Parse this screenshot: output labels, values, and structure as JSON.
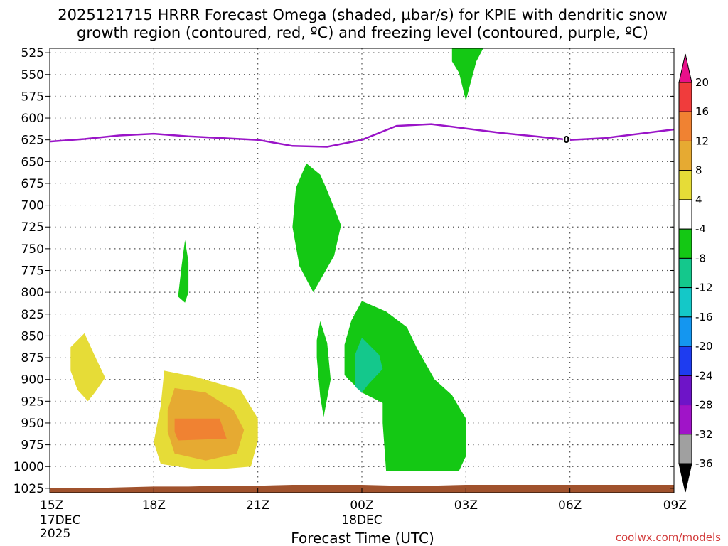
{
  "chart_data": {
    "type": "time-height contour",
    "title_line1": "2025121715 HRRR Forecast Omega (shaded, µbar/s) for KPIE with dendritic snow",
    "title_line2": "growth region (contoured, red, ºC) and freezing level (contoured, purple, ºC)",
    "xlabel": "Forecast Time (UTC)",
    "x_ticks": [
      {
        "hour": 0,
        "label": "15Z",
        "sub": [
          "17DEC",
          "2025"
        ]
      },
      {
        "hour": 3,
        "label": "18Z",
        "sub": []
      },
      {
        "hour": 6,
        "label": "21Z",
        "sub": []
      },
      {
        "hour": 9,
        "label": "00Z",
        "sub": [
          "18DEC"
        ]
      },
      {
        "hour": 12,
        "label": "03Z",
        "sub": []
      },
      {
        "hour": 15,
        "label": "06Z",
        "sub": []
      },
      {
        "hour": 18,
        "label": "09Z",
        "sub": []
      }
    ],
    "xlim_hours": [
      0,
      18
    ],
    "ylim_hpa": [
      1030,
      520
    ],
    "y_ticks": [
      525,
      550,
      575,
      600,
      625,
      650,
      675,
      700,
      725,
      750,
      775,
      800,
      825,
      850,
      875,
      900,
      925,
      950,
      975,
      1000,
      1025
    ],
    "colorbar": {
      "levels": [
        20,
        16,
        12,
        8,
        4,
        -4,
        -8,
        -12,
        -16,
        -20,
        -24,
        -28,
        -32,
        -36
      ],
      "colors": [
        "#e8108a",
        "#f03c3c",
        "#f08232",
        "#e6aa32",
        "#e6dc37",
        "#ffffff",
        "#14c814",
        "#14c88c",
        "#14c8c8",
        "#1496f0",
        "#1e3cf0",
        "#6e14c8",
        "#a014c8",
        "#a0a0a0",
        "#000000"
      ]
    },
    "freezing_level": {
      "label": "0",
      "label_hour": 14.9,
      "points": [
        [
          0,
          627
        ],
        [
          1,
          624
        ],
        [
          2,
          620
        ],
        [
          3,
          618
        ],
        [
          4,
          621
        ],
        [
          5,
          623
        ],
        [
          6,
          625
        ],
        [
          7,
          632
        ],
        [
          8,
          633
        ],
        [
          9,
          625
        ],
        [
          10,
          609
        ],
        [
          11,
          607
        ],
        [
          12,
          612
        ],
        [
          13,
          617
        ],
        [
          14,
          621
        ],
        [
          15,
          625
        ],
        [
          16,
          623
        ],
        [
          17,
          618
        ],
        [
          18,
          613
        ]
      ]
    },
    "omega_regions": [
      {
        "name": "green-blob-top-03z",
        "level": -4,
        "color": "#14c814",
        "points": [
          [
            11.6,
            520
          ],
          [
            12.5,
            520
          ],
          [
            12.3,
            535
          ],
          [
            12.0,
            580
          ],
          [
            11.8,
            548
          ],
          [
            11.6,
            535
          ]
        ]
      },
      {
        "name": "green-blob-700mb-22z",
        "level": -4,
        "color": "#14c814",
        "points": [
          [
            7.4,
            652
          ],
          [
            7.8,
            665
          ],
          [
            8.0,
            683
          ],
          [
            8.4,
            723
          ],
          [
            8.2,
            758
          ],
          [
            7.6,
            800
          ],
          [
            7.2,
            770
          ],
          [
            7.0,
            725
          ],
          [
            7.1,
            680
          ]
        ]
      },
      {
        "name": "green-blob-775mb-19z",
        "level": -4,
        "color": "#14c814",
        "points": [
          [
            3.9,
            740
          ],
          [
            4.0,
            765
          ],
          [
            4.0,
            800
          ],
          [
            3.9,
            812
          ],
          [
            3.7,
            805
          ],
          [
            3.8,
            770
          ]
        ]
      },
      {
        "name": "green-blob-900mb-22z",
        "level": -4,
        "color": "#14c814",
        "points": [
          [
            7.8,
            833
          ],
          [
            8.0,
            858
          ],
          [
            8.1,
            900
          ],
          [
            7.9,
            943
          ],
          [
            7.8,
            920
          ],
          [
            7.7,
            875
          ],
          [
            7.7,
            855
          ]
        ]
      },
      {
        "name": "green-blob-900mb-00z",
        "level": -4,
        "color": "#14c814",
        "points": [
          [
            9.0,
            810
          ],
          [
            9.7,
            822
          ],
          [
            10.3,
            840
          ],
          [
            10.6,
            865
          ],
          [
            11.1,
            900
          ],
          [
            11.6,
            918
          ],
          [
            12.0,
            945
          ],
          [
            12.0,
            988
          ],
          [
            11.8,
            1005
          ],
          [
            9.7,
            1005
          ],
          [
            9.6,
            950
          ],
          [
            9.6,
            927
          ],
          [
            9.0,
            915
          ],
          [
            8.5,
            895
          ],
          [
            8.5,
            860
          ],
          [
            8.7,
            832
          ]
        ]
      },
      {
        "name": "teal-core-880mb-00z",
        "level": -8,
        "color": "#14c88c",
        "points": [
          [
            9.0,
            852
          ],
          [
            9.5,
            872
          ],
          [
            9.6,
            888
          ],
          [
            9.2,
            905
          ],
          [
            9.0,
            915
          ],
          [
            8.8,
            908
          ],
          [
            8.8,
            872
          ]
        ]
      },
      {
        "name": "yellow-blob-890mb-16z",
        "level": 4,
        "color": "#e6dc37",
        "points": [
          [
            1.0,
            847
          ],
          [
            1.3,
            873
          ],
          [
            1.6,
            898
          ],
          [
            1.3,
            915
          ],
          [
            1.1,
            925
          ],
          [
            0.8,
            912
          ],
          [
            0.6,
            890
          ],
          [
            0.6,
            863
          ]
        ]
      },
      {
        "name": "yellow-blob-950mb-19z",
        "level": 4,
        "color": "#e6dc37",
        "points": [
          [
            3.3,
            890
          ],
          [
            4.2,
            897
          ],
          [
            5.5,
            912
          ],
          [
            6.0,
            945
          ],
          [
            6.0,
            970
          ],
          [
            5.8,
            1000
          ],
          [
            4.9,
            1003
          ],
          [
            4.2,
            1003
          ],
          [
            3.2,
            997
          ],
          [
            3.0,
            972
          ],
          [
            3.2,
            930
          ]
        ]
      },
      {
        "name": "orange-blob-950mb-19z",
        "level": 8,
        "color": "#e6aa32",
        "points": [
          [
            3.6,
            910
          ],
          [
            4.5,
            915
          ],
          [
            5.3,
            935
          ],
          [
            5.6,
            958
          ],
          [
            5.4,
            985
          ],
          [
            4.5,
            993
          ],
          [
            3.6,
            985
          ],
          [
            3.4,
            960
          ],
          [
            3.4,
            935
          ]
        ]
      },
      {
        "name": "dark-orange-core-955mb-19z",
        "level": 12,
        "color": "#f08232",
        "points": [
          [
            3.6,
            945
          ],
          [
            4.9,
            945
          ],
          [
            5.1,
            968
          ],
          [
            3.7,
            970
          ],
          [
            3.6,
            960
          ]
        ]
      }
    ],
    "terrain": {
      "color": "#a0522d",
      "points": [
        [
          0,
          1025
        ],
        [
          1,
          1025
        ],
        [
          2,
          1024
        ],
        [
          3,
          1023
        ],
        [
          4,
          1023
        ],
        [
          5,
          1022
        ],
        [
          6,
          1022
        ],
        [
          7,
          1021
        ],
        [
          8,
          1021
        ],
        [
          9,
          1021
        ],
        [
          10,
          1022
        ],
        [
          11,
          1022
        ],
        [
          12,
          1021
        ],
        [
          13,
          1021
        ],
        [
          14,
          1021
        ],
        [
          15,
          1021
        ],
        [
          16,
          1021
        ],
        [
          17,
          1021
        ],
        [
          18,
          1021
        ]
      ]
    }
  },
  "credit": "coolwx.com/models"
}
